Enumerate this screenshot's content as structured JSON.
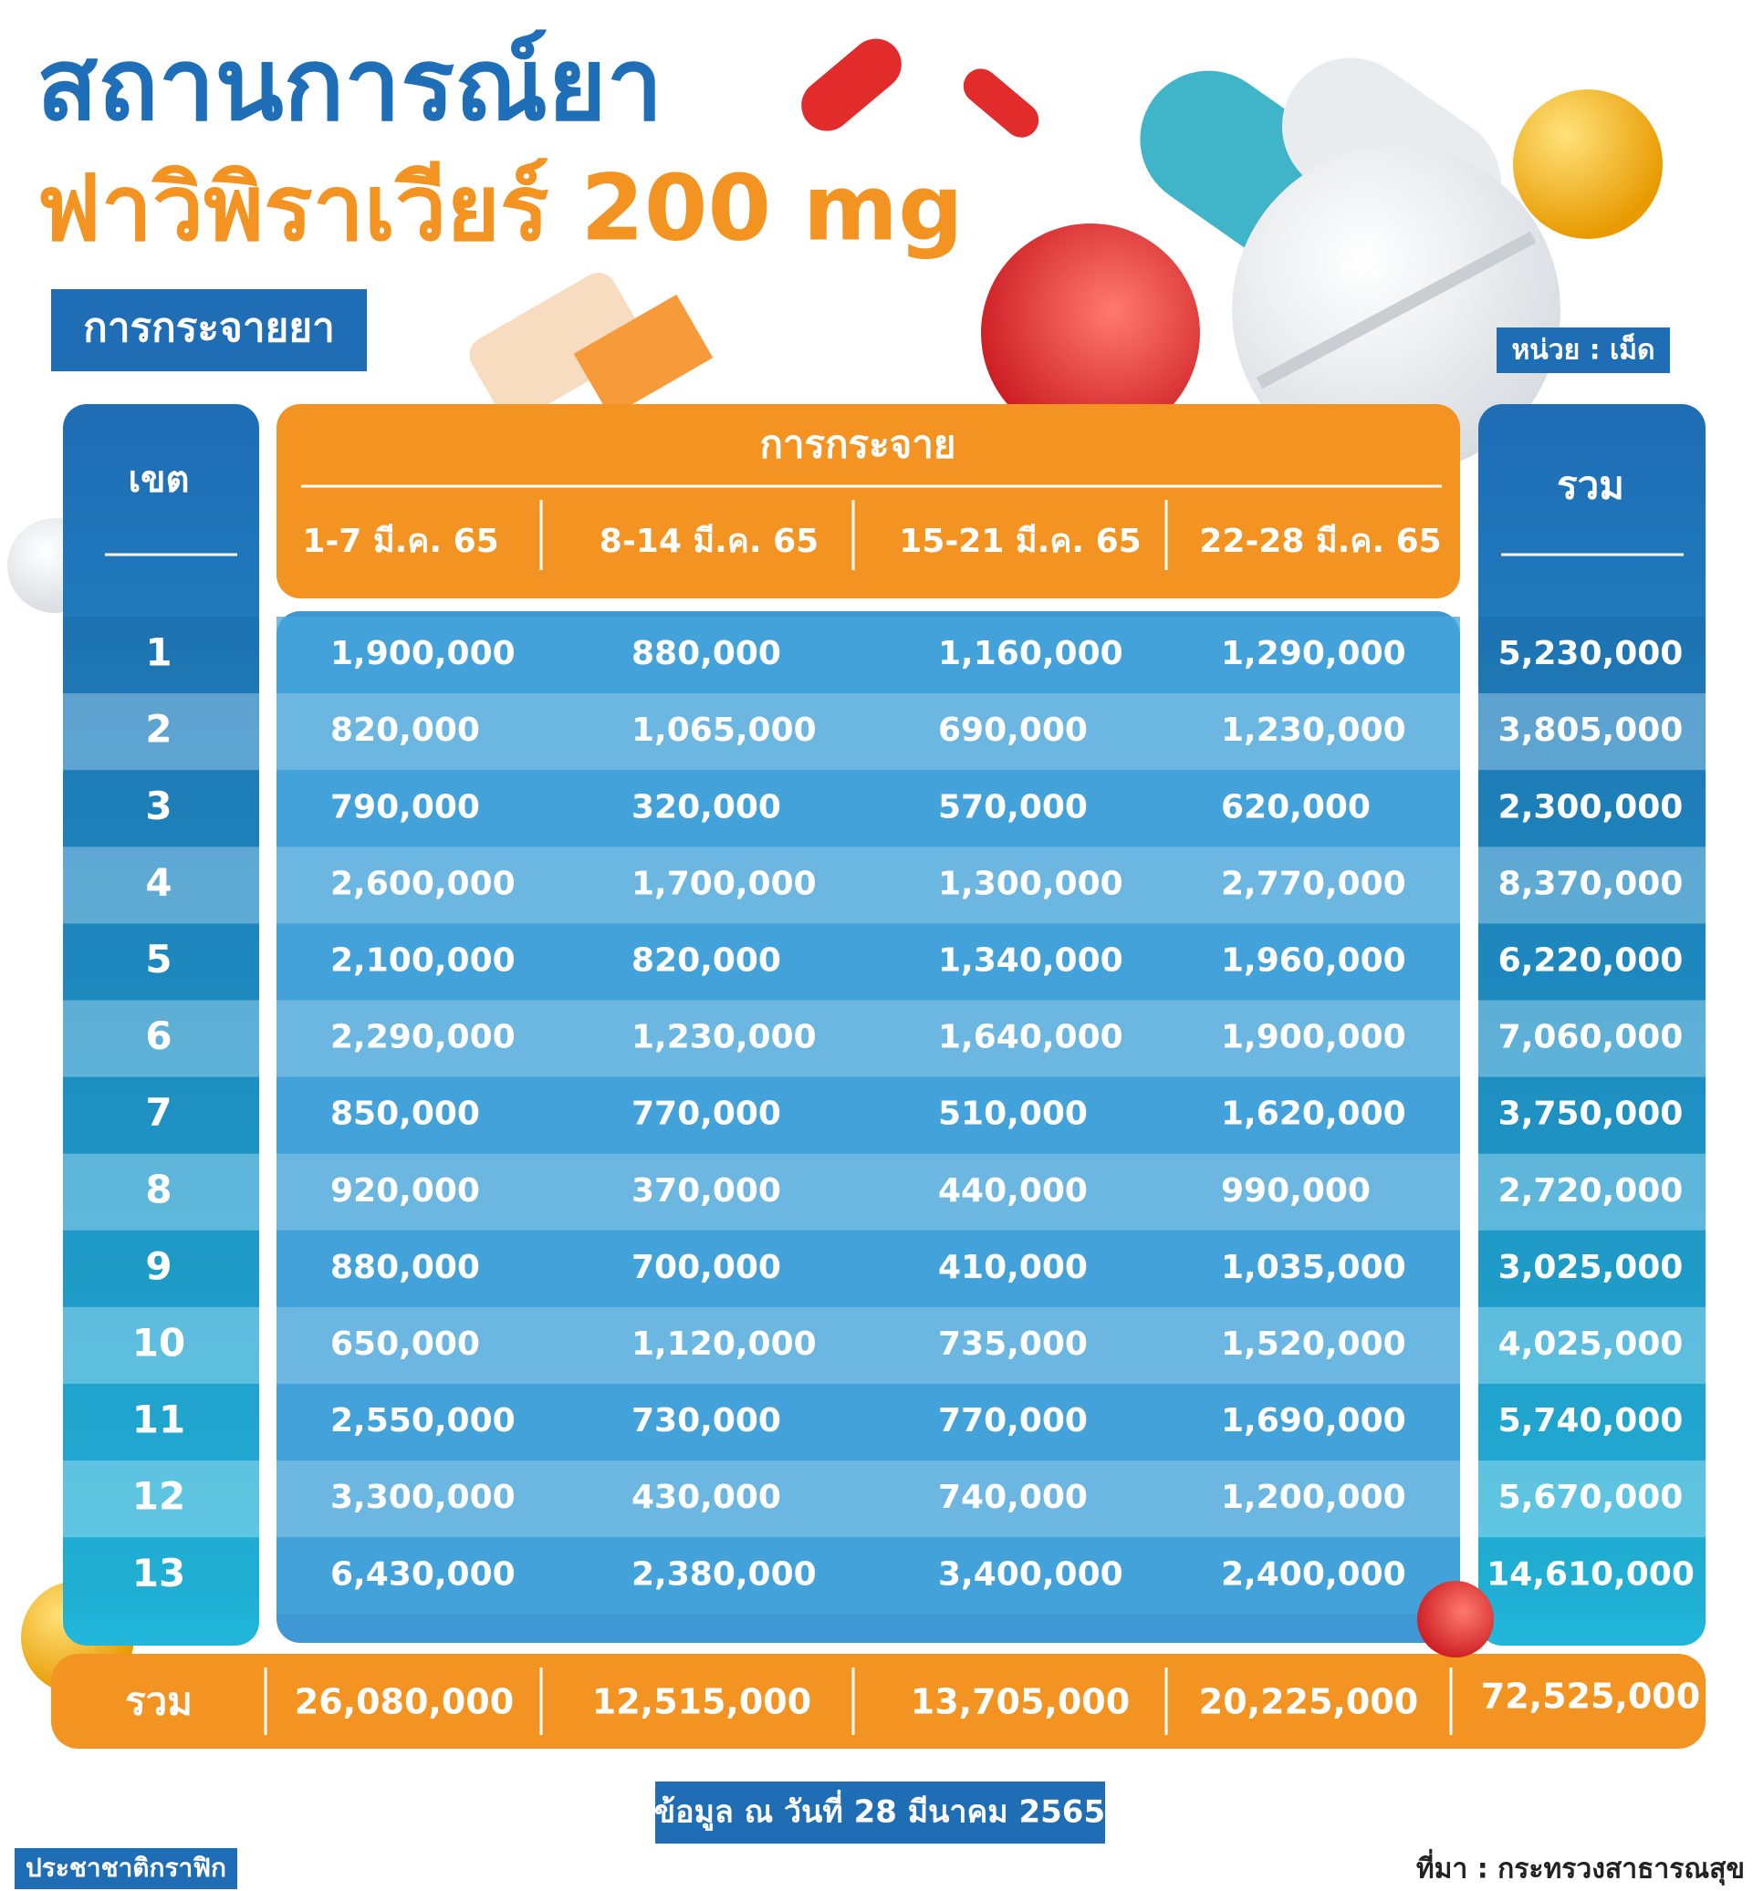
{
  "header": {
    "title_line1": "สถานการณ์ยา",
    "title_line2": "ฟาวิพิราเวียร์ 200 mg",
    "section_label": "การกระจายยา",
    "unit_label": "หน่วย : เม็ด"
  },
  "table": {
    "zone_header": "เขต",
    "group_header": "การกระจาย",
    "total_header": "รวม",
    "columns": [
      "1-7 มี.ค. 65",
      "8-14 มี.ค. 65",
      "15-21 มี.ค. 65",
      "22-28 มี.ค. 65"
    ],
    "rows": [
      [
        "1",
        "1,900,000",
        "880,000",
        "1,160,000",
        "1,290,000",
        "5,230,000"
      ],
      [
        "2",
        "820,000",
        "1,065,000",
        "690,000",
        "1,230,000",
        "3,805,000"
      ],
      [
        "3",
        "790,000",
        "320,000",
        "570,000",
        "620,000",
        "2,300,000"
      ],
      [
        "4",
        "2,600,000",
        "1,700,000",
        "1,300,000",
        "2,770,000",
        "8,370,000"
      ],
      [
        "5",
        "2,100,000",
        "820,000",
        "1,340,000",
        "1,960,000",
        "6,220,000"
      ],
      [
        "6",
        "2,290,000",
        "1,230,000",
        "1,640,000",
        "1,900,000",
        "7,060,000"
      ],
      [
        "7",
        "850,000",
        "770,000",
        "510,000",
        "1,620,000",
        "3,750,000"
      ],
      [
        "8",
        "920,000",
        "370,000",
        "440,000",
        "990,000",
        "2,720,000"
      ],
      [
        "9",
        "880,000",
        "700,000",
        "410,000",
        "1,035,000",
        "3,025,000"
      ],
      [
        "10",
        "650,000",
        "1,120,000",
        "735,000",
        "1,520,000",
        "4,025,000"
      ],
      [
        "11",
        "2,550,000",
        "730,000",
        "770,000",
        "1,690,000",
        "5,740,000"
      ],
      [
        "12",
        "3,300,000",
        "430,000",
        "740,000",
        "1,200,000",
        "5,670,000"
      ],
      [
        "13",
        "6,430,000",
        "2,380,000",
        "3,400,000",
        "2,400,000",
        "14,610,000"
      ]
    ],
    "footer": {
      "label": "รวม",
      "values": [
        "26,080,000",
        "12,515,000",
        "13,705,000",
        "20,225,000"
      ],
      "total": "72,525,000"
    }
  },
  "date_note": "ข้อมูล ณ วันที่ 28 มีนาคม 2565",
  "brand": "ประชาชาติกราฟิก",
  "source": "ที่มา : กระทรวงสาธารณสุข"
}
